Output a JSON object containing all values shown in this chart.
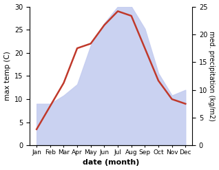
{
  "months": [
    "Jan",
    "Feb",
    "Mar",
    "Apr",
    "May",
    "Jun",
    "Jul",
    "Aug",
    "Sep",
    "Oct",
    "Nov",
    "Dec"
  ],
  "x": [
    1,
    2,
    3,
    4,
    5,
    6,
    7,
    8,
    9,
    10,
    11,
    12
  ],
  "temperature": [
    3.5,
    8.5,
    13.5,
    21.0,
    22.0,
    26.0,
    29.0,
    28.0,
    21.0,
    14.0,
    10.0,
    9.0
  ],
  "precipitation": [
    7.5,
    7.5,
    9.0,
    11.0,
    18.0,
    22.0,
    25.0,
    25.0,
    21.0,
    13.0,
    9.0,
    10.0
  ],
  "temp_color": "#c0392b",
  "precip_fill_color": "#c5cdf0",
  "title": "",
  "xlabel": "date (month)",
  "ylabel_left": "max temp (C)",
  "ylabel_right": "med. precipitation (kg/m2)",
  "ylim_left": [
    0,
    30
  ],
  "ylim_right": [
    0,
    25
  ],
  "yticks_left": [
    0,
    5,
    10,
    15,
    20,
    25,
    30
  ],
  "yticks_right": [
    0,
    5,
    10,
    15,
    20,
    25
  ],
  "bg_color": "#ffffff",
  "line_width": 1.8
}
